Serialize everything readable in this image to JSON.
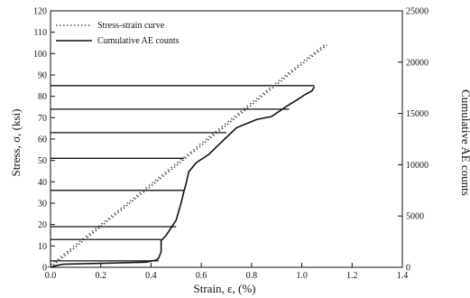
{
  "chart_data": {
    "type": "line",
    "title": "",
    "xlabel": "Strain, ε, (%)",
    "ylabel": "Stress, σ, (ksi)",
    "y2label": "Cumulative AE counts",
    "xlim": [
      0,
      1.4
    ],
    "ylim": [
      0,
      120
    ],
    "y2lim": [
      0,
      25000
    ],
    "x_ticks": [
      "0.0",
      "0.2",
      "0.4",
      "0.6",
      "0.8",
      "1.0",
      "1.2",
      "1.4"
    ],
    "y_ticks": [
      "0",
      "10",
      "20",
      "30",
      "40",
      "50",
      "60",
      "70",
      "80",
      "90",
      "100",
      "110",
      "120"
    ],
    "y2_ticks": [
      "0",
      "5000",
      "10000",
      "15000",
      "20000",
      "25000"
    ],
    "grid": false,
    "legend_position": "top-left",
    "series": [
      {
        "name": "Stress-strain curve",
        "axis": "left",
        "style": "dotted",
        "color": "#333333",
        "x": [
          0.0,
          0.2,
          0.4,
          0.6,
          0.8,
          1.0,
          1.1
        ],
        "y": [
          0,
          19,
          38,
          57,
          76,
          95,
          104
        ]
      },
      {
        "name": "Cumulative AE counts",
        "axis": "right",
        "style": "solid",
        "color": "#111111",
        "x": [
          0.0,
          0.02,
          0.05,
          0.38,
          0.42,
          0.43,
          0.44,
          0.44,
          0.46,
          0.5,
          0.52,
          0.53,
          0.54,
          0.55,
          0.58,
          0.63,
          0.68,
          0.74,
          0.82,
          0.88,
          0.94,
          0.98,
          1.01,
          1.04,
          1.05
        ],
        "y": [
          0,
          150,
          300,
          500,
          700,
          900,
          1500,
          2600,
          3100,
          4600,
          6300,
          7300,
          8200,
          9300,
          10200,
          11000,
          12200,
          13600,
          14400,
          14700,
          15700,
          16300,
          16800,
          17200,
          17600
        ]
      }
    ],
    "step_lines_ksi": [
      3,
      13,
      19,
      36,
      51,
      63,
      74,
      85
    ],
    "step_lines_end_x": [
      0.43,
      0.44,
      0.5,
      0.53,
      0.53,
      0.7,
      0.95,
      1.05
    ]
  }
}
